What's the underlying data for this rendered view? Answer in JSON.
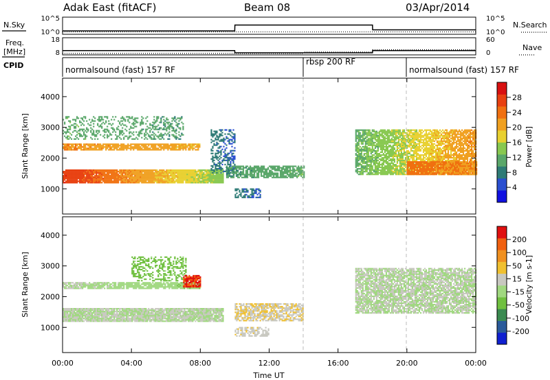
{
  "header": {
    "station": "Adak East (fitACF)",
    "beam": "Beam 08",
    "date": "03/Apr/2014"
  },
  "labels": {
    "nsky": "N.Sky",
    "nsearch": "N.Search",
    "freq_line1": "Freq.",
    "freq_line2": "[MHz]",
    "nave": "Nave",
    "cpid": "CPID",
    "y_top": "Slant Range [km]",
    "y_bottom": "Slant Range [km]",
    "x": "Time UT"
  },
  "noise_panel": {
    "left_ticks": [
      "10^5",
      "10^0"
    ],
    "right_ticks": [
      "10^5",
      "10^0"
    ]
  },
  "freq_panel": {
    "left_ticks": [
      "18",
      "8"
    ],
    "right_ticks": [
      "60",
      "0"
    ]
  },
  "cpid_segments": [
    {
      "label": "normalsound (fast) 157 RF",
      "start_hr": 0,
      "end_hr": 14
    },
    {
      "label": "rbsp 200 RF",
      "start_hr": 14,
      "end_hr": 20
    },
    {
      "label": "normalsound (fast) 157 RF",
      "start_hr": 20,
      "end_hr": 24
    }
  ],
  "power_colorbar": {
    "title": "Power [dB]",
    "ticks": [
      "4",
      "8",
      "12",
      "16",
      "20",
      "24",
      "28"
    ],
    "colors": [
      "#1010e0",
      "#2a4fd0",
      "#2e7b76",
      "#5aa76a",
      "#88c850",
      "#e8d030",
      "#f0a020",
      "#f07010",
      "#e84010",
      "#d81010"
    ]
  },
  "velocity_colorbar": {
    "title": "Velocity [m s-1]",
    "ticks": [
      "200",
      "100",
      "50",
      "15",
      "-15",
      "-50",
      "-100",
      "-200"
    ],
    "colors": [
      "#1020d0",
      "#2a5a9a",
      "#3a8a50",
      "#70c040",
      "#a0d880",
      "#c8c8c0",
      "#f0c030",
      "#f09020",
      "#f06010",
      "#e01010"
    ]
  },
  "chart_data": [
    {
      "type": "line",
      "title": "",
      "series": [
        {
          "name": "N.Sky",
          "x": [
            0,
            1,
            10,
            10.01,
            18,
            18.01,
            24
          ],
          "values": [
            10,
            10,
            10,
            500,
            500,
            20,
            20
          ]
        },
        {
          "name": "N.Search",
          "x": [
            0,
            24
          ],
          "values": [
            5,
            5
          ]
        }
      ],
      "ylim": [
        1,
        100000
      ],
      "yscale": "log"
    },
    {
      "type": "line",
      "series": [
        {
          "name": "Freq. [MHz]",
          "x": [
            0,
            10,
            10.01,
            18,
            18.01,
            24
          ],
          "values": [
            10.5,
            10.5,
            9.2,
            9.2,
            10.5,
            10.5
          ]
        },
        {
          "name": "Nave",
          "x": [
            0,
            14,
            14.01,
            18,
            18.01,
            24
          ],
          "values": [
            5,
            5,
            10,
            10,
            18,
            18
          ]
        }
      ],
      "ylim_left": [
        8,
        18
      ],
      "ylim_right": [
        0,
        60
      ]
    },
    {
      "type": "heatmap",
      "xlabel": "Time UT",
      "ylabel": "Slant Range [km]",
      "x_ticks": [
        "00:00",
        "04:00",
        "08:00",
        "12:00",
        "16:00",
        "20:00",
        "00:00"
      ],
      "y_ticks": [
        "1000",
        "2000",
        "3000",
        "4000"
      ],
      "xlim_hours": [
        0,
        24
      ],
      "ylim_km": [
        180,
        4600
      ],
      "colorbar": "Power [dB]",
      "clim": [
        0,
        32
      ],
      "echo_bands": [
        {
          "t0": 0.0,
          "t1": 9.3,
          "r0": 1180,
          "r1": 1620,
          "value_start": 28,
          "value_end": 14,
          "density": 0.95
        },
        {
          "t0": 0.0,
          "t1": 8.0,
          "r0": 2250,
          "r1": 2450,
          "value_start": 22,
          "value_end": 20,
          "density": 0.85
        },
        {
          "t0": 0.0,
          "t1": 7.0,
          "r0": 2600,
          "r1": 3350,
          "value_start": 12,
          "value_end": 10,
          "density": 0.35
        },
        {
          "t0": 8.6,
          "t1": 10.0,
          "r0": 1500,
          "r1": 2900,
          "value_start": 8,
          "value_end": 6,
          "density": 0.45
        },
        {
          "t0": 9.5,
          "t1": 14.0,
          "r0": 1350,
          "r1": 1750,
          "value_start": 10,
          "value_end": 12,
          "density": 0.75
        },
        {
          "t0": 10.0,
          "t1": 11.5,
          "r0": 700,
          "r1": 1000,
          "value_start": 8,
          "value_end": 6,
          "density": 0.55
        },
        {
          "t0": 17.0,
          "t1": 24.0,
          "r0": 1450,
          "r1": 2900,
          "value_start": 12,
          "value_end": 22,
          "density": 0.8
        },
        {
          "t0": 20.0,
          "t1": 24.0,
          "r0": 1450,
          "r1": 1900,
          "value_start": 24,
          "value_end": 22,
          "density": 0.9
        }
      ]
    },
    {
      "type": "heatmap",
      "xlabel": "Time UT",
      "ylabel": "Slant Range [km]",
      "x_ticks": [
        "00:00",
        "04:00",
        "08:00",
        "12:00",
        "16:00",
        "20:00",
        "00:00"
      ],
      "y_ticks": [
        "1000",
        "2000",
        "3000",
        "4000"
      ],
      "xlim_hours": [
        0,
        24
      ],
      "ylim_km": [
        180,
        4600
      ],
      "colorbar": "Velocity [m s-1]",
      "clim": [
        -250,
        250
      ],
      "echo_bands": [
        {
          "t0": 0.0,
          "t1": 9.3,
          "r0": 1180,
          "r1": 1620,
          "value_start": 0,
          "value_end": 0,
          "density": 0.95
        },
        {
          "t0": 0.0,
          "t1": 8.0,
          "r0": 2250,
          "r1": 2450,
          "value_start": 0,
          "value_end": -40,
          "density": 0.85
        },
        {
          "t0": 4.0,
          "t1": 7.2,
          "r0": 2500,
          "r1": 3300,
          "value_start": -70,
          "value_end": -60,
          "density": 0.45
        },
        {
          "t0": 7.0,
          "t1": 8.0,
          "r0": 2300,
          "r1": 2700,
          "value_start": 200,
          "value_end": 200,
          "density": 0.8
        },
        {
          "t0": 10.0,
          "t1": 14.0,
          "r0": 1200,
          "r1": 1750,
          "value_start": 50,
          "value_end": 40,
          "density": 0.75
        },
        {
          "t0": 10.0,
          "t1": 12.0,
          "r0": 700,
          "r1": 1000,
          "value_start": 40,
          "value_end": 30,
          "density": 0.6
        },
        {
          "t0": 17.0,
          "t1": 24.0,
          "r0": 1450,
          "r1": 2900,
          "value_start": 0,
          "value_end": 0,
          "density": 0.8
        }
      ]
    }
  ]
}
